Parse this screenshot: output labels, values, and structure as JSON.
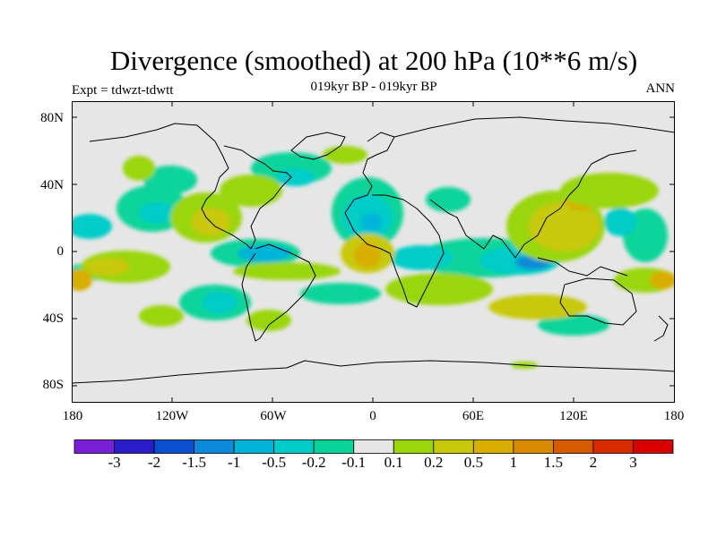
{
  "header": {
    "title": "Divergence (smoothed) at 200 hPa (10**6 m/s)",
    "subtitle": "019kyr BP - 019kyr BP",
    "expt": "Expt = tdwzt-tdwtt",
    "season": "ANN"
  },
  "axes": {
    "lat_labels": [
      "80N",
      "40N",
      "0",
      "40S",
      "80S"
    ],
    "lon_labels": [
      "180",
      "120W",
      "60W",
      "0",
      "60E",
      "120E",
      "180"
    ]
  },
  "colorbar": {
    "labels": [
      "-3",
      "-2",
      "-1.5",
      "-1",
      "-0.5",
      "-0.2",
      "-0.1",
      "0.1",
      "0.2",
      "0.5",
      "1",
      "1.5",
      "2",
      "3"
    ],
    "colors": [
      "#7a1fd8",
      "#2a1cc8",
      "#0a4fd0",
      "#0a8ad8",
      "#00b4d8",
      "#00ccc8",
      "#08d49a",
      "#e6e6e6",
      "#9ad60a",
      "#c8c80a",
      "#d8ae00",
      "#d88a00",
      "#d85a00",
      "#d82a00",
      "#d80000"
    ]
  },
  "colors": {
    "ocean_land_bg": "#e6e6e6",
    "coastline": "#000000"
  }
}
